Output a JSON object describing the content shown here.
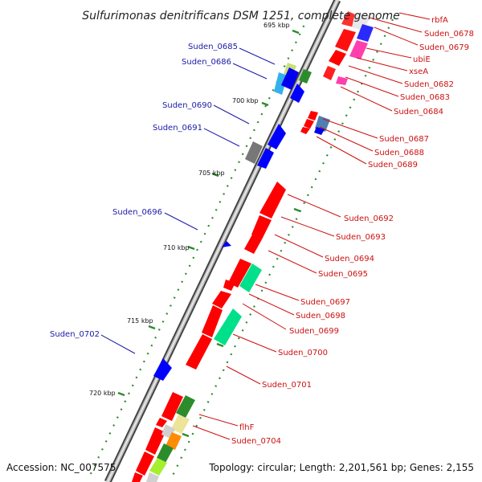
{
  "title": "Sulfurimonas denitrificans DSM 1251, complete genome",
  "footer": {
    "accession": "Accession: NC_007575",
    "topology": "Topology: circular; Length: 2,201,561 bp; Genes: 2,155"
  },
  "kbp_ticks": [
    {
      "label": "695 kbp"
    },
    {
      "label": "700 kbp"
    },
    {
      "label": "705 kbp"
    },
    {
      "label": "710 kbp"
    },
    {
      "label": "715 kbp"
    },
    {
      "label": "720 kbp"
    }
  ],
  "labels_left": [
    "Suden_0685",
    "Suden_0686",
    "Suden_0690",
    "Suden_0691",
    "Suden_0696",
    "Suden_0702"
  ],
  "labels_right": [
    "rbfA",
    "Suden_0678",
    "Suden_0679",
    "ubiE",
    "xseA",
    "Suden_0682",
    "Suden_0683",
    "Suden_0684",
    "Suden_0687",
    "Suden_0688",
    "Suden_0689",
    "Suden_0692",
    "Suden_0693",
    "Suden_0694",
    "Suden_0695",
    "Suden_0697",
    "Suden_0698",
    "Suden_0699",
    "Suden_0700",
    "Suden_0701",
    "flhF",
    "Suden_0704"
  ],
  "colors": {
    "backbone": "#8a8a8a",
    "left_label": "#1a1aa6",
    "right_label": "#cc1111",
    "tick": "#2e8b2e",
    "gene_red": "#ff0000",
    "gene_blue": "#0000ff",
    "gene_green": "#00e08a"
  }
}
